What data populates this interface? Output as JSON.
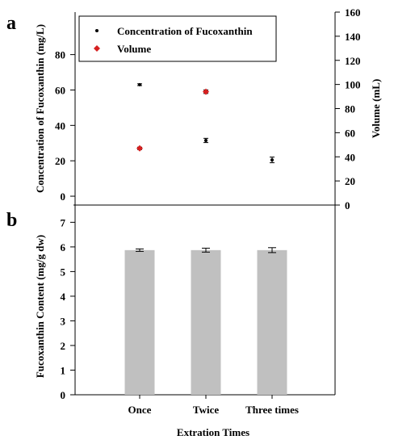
{
  "chart_data": [
    {
      "type": "scatter",
      "panel_label": "a",
      "categories": [
        "Once",
        "Twice",
        "Three times"
      ],
      "xlabel": "",
      "ylabel": "Concentration of Fucoxanthin (mg/L)",
      "ylim": [
        -5,
        104
      ],
      "yticks": [
        0,
        20,
        40,
        60,
        80
      ],
      "y2label": "Volume (mL)",
      "y2lim": [
        0,
        160
      ],
      "y2ticks": [
        0,
        20,
        40,
        60,
        80,
        100,
        120,
        140,
        160
      ],
      "legend_position": "top-left",
      "series": [
        {
          "name": "Concentration of Fucoxanthin",
          "axis": "left",
          "marker": "dot",
          "color": "#000000",
          "values": [
            63,
            31.5,
            20.5
          ],
          "errors": [
            0.5,
            1.2,
            1.6
          ]
        },
        {
          "name": "Volume",
          "axis": "right",
          "marker": "diamond",
          "color": "#d62020",
          "values": [
            null,
            null,
            null
          ],
          "values_present": [
            47,
            94,
            null
          ],
          "errors": [
            1.0,
            1.5,
            0
          ]
        }
      ]
    },
    {
      "type": "bar",
      "panel_label": "b",
      "categories": [
        "Once",
        "Twice",
        "Three times"
      ],
      "xlabel": "Extration Times",
      "ylabel": "Fucoxanthin Content (mg/g dw)",
      "ylim": [
        0,
        7.7
      ],
      "yticks": [
        0,
        1,
        2,
        3,
        4,
        5,
        6,
        7
      ],
      "bar_color": "#c0c0c0",
      "values": [
        5.87,
        5.87,
        5.87
      ],
      "errors": [
        0.05,
        0.08,
        0.1
      ]
    }
  ]
}
